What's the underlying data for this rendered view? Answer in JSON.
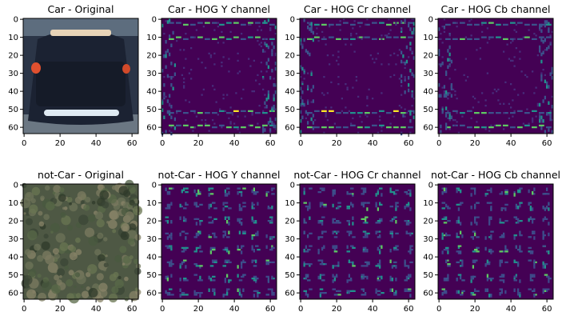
{
  "figure": {
    "panels": [
      {
        "title": "Car - Original",
        "kind": "car-photo"
      },
      {
        "title": "Car - HOG Y channel",
        "kind": "hog-car",
        "seed": 11
      },
      {
        "title": "Car - HOG Cr channel",
        "kind": "hog-car",
        "seed": 23
      },
      {
        "title": "Car - HOG Cb channel",
        "kind": "hog-car",
        "seed": 37
      },
      {
        "title": "not-Car - Original",
        "kind": "bush-photo"
      },
      {
        "title": "not-Car - HOG Y channel",
        "kind": "hog-grid",
        "seed": 41
      },
      {
        "title": "not-Car - HOG Cr channel",
        "kind": "hog-grid",
        "seed": 53
      },
      {
        "title": "not-Car - HOG Cb channel",
        "kind": "hog-grid",
        "seed": 67
      }
    ],
    "axes": {
      "x_ticks": [
        "0",
        "20",
        "40",
        "60"
      ],
      "y_ticks": [
        "0",
        "10",
        "20",
        "30",
        "40",
        "50",
        "60"
      ],
      "x_values": [
        0,
        20,
        40,
        60
      ],
      "y_values": [
        0,
        10,
        20,
        30,
        40,
        50,
        60
      ],
      "extent": [
        -0.5,
        63.5
      ]
    },
    "colors": {
      "hog_background": "#440154",
      "hog_low": "#3b528b",
      "hog_mid": "#21918c",
      "hog_high": "#5ec962",
      "hog_peak": "#fde725"
    }
  }
}
